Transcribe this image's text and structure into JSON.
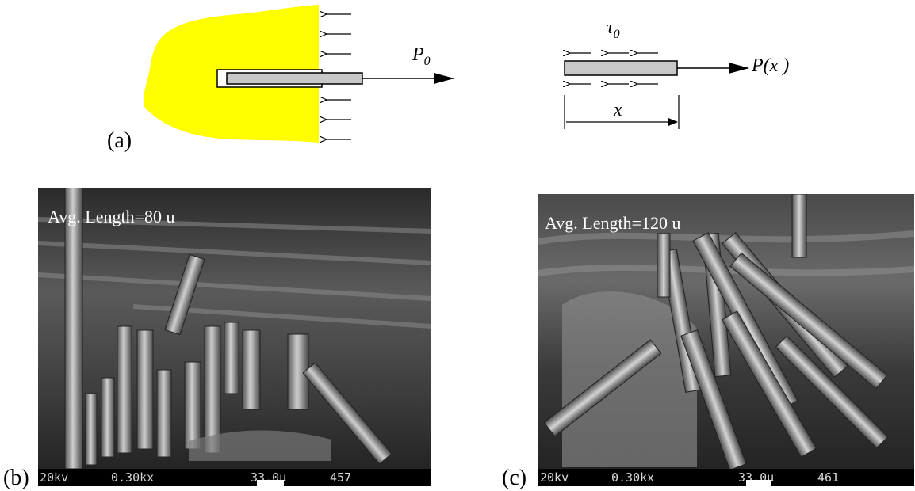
{
  "panel_a": {
    "label": "(a)",
    "load_label": "P",
    "load_subscript": "0",
    "tau_label": "τ",
    "tau_subscript": "0",
    "px_label": "P(x )",
    "x_label": "x"
  },
  "panel_b": {
    "label": "(b)",
    "caption": "Avg. Length=80 u",
    "voltage": "20kv",
    "magnification": "0.30kx",
    "scale": "33.0μ",
    "frame": "457"
  },
  "panel_c": {
    "label": "(c)",
    "caption": "Avg. Length=120 u",
    "voltage": "20kv",
    "magnification": "0.30kx",
    "scale": "33.0μ",
    "frame": "461"
  },
  "colors": {
    "matrix": "#ffff00",
    "fiber": "#c8c8c8"
  }
}
